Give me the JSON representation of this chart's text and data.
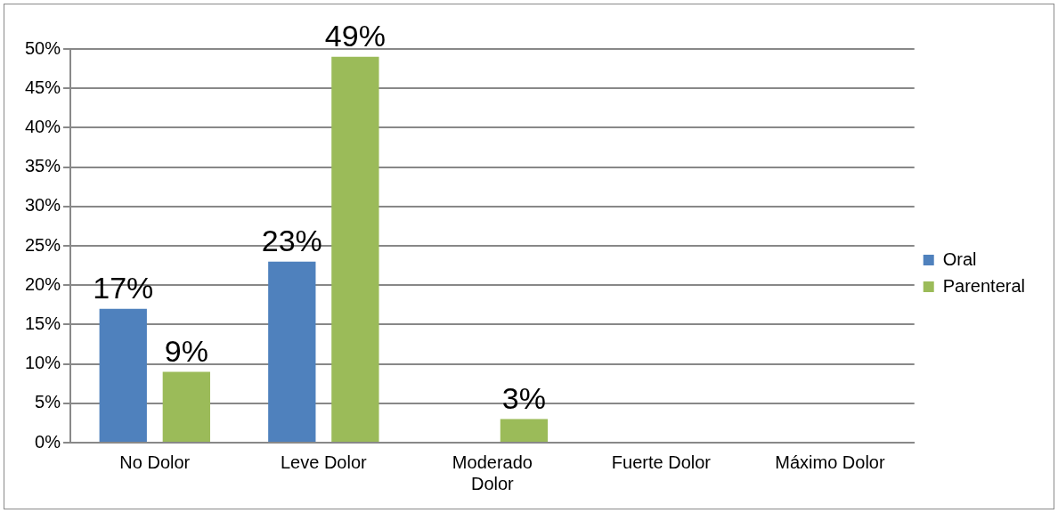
{
  "chart_data": {
    "type": "bar",
    "categories": [
      "No Dolor",
      "Leve Dolor",
      "Moderado Dolor",
      "Fuerte Dolor",
      "Máximo Dolor"
    ],
    "series": [
      {
        "name": "Oral",
        "color": "#4f81bd",
        "values": [
          17,
          23,
          0,
          0,
          0
        ],
        "value_labels": [
          "17%",
          "23%",
          null,
          null,
          null
        ]
      },
      {
        "name": "Parenteral",
        "color": "#9bbb59",
        "values": [
          9,
          49,
          3,
          0,
          0
        ],
        "value_labels": [
          "9%",
          "49%",
          "3%",
          null,
          null
        ]
      }
    ],
    "ylim": [
      0,
      50
    ],
    "yticks": [
      {
        "value": 0,
        "label": "0%"
      },
      {
        "value": 5,
        "label": "5%"
      },
      {
        "value": 10,
        "label": "10%"
      },
      {
        "value": 15,
        "label": "15%"
      },
      {
        "value": 20,
        "label": "20%"
      },
      {
        "value": 25,
        "label": "25%"
      },
      {
        "value": 30,
        "label": "30%"
      },
      {
        "value": 35,
        "label": "35%"
      },
      {
        "value": 40,
        "label": "40%"
      },
      {
        "value": 45,
        "label": "45%"
      },
      {
        "value": 50,
        "label": "50%"
      }
    ],
    "grid": "y",
    "legend": "right"
  }
}
